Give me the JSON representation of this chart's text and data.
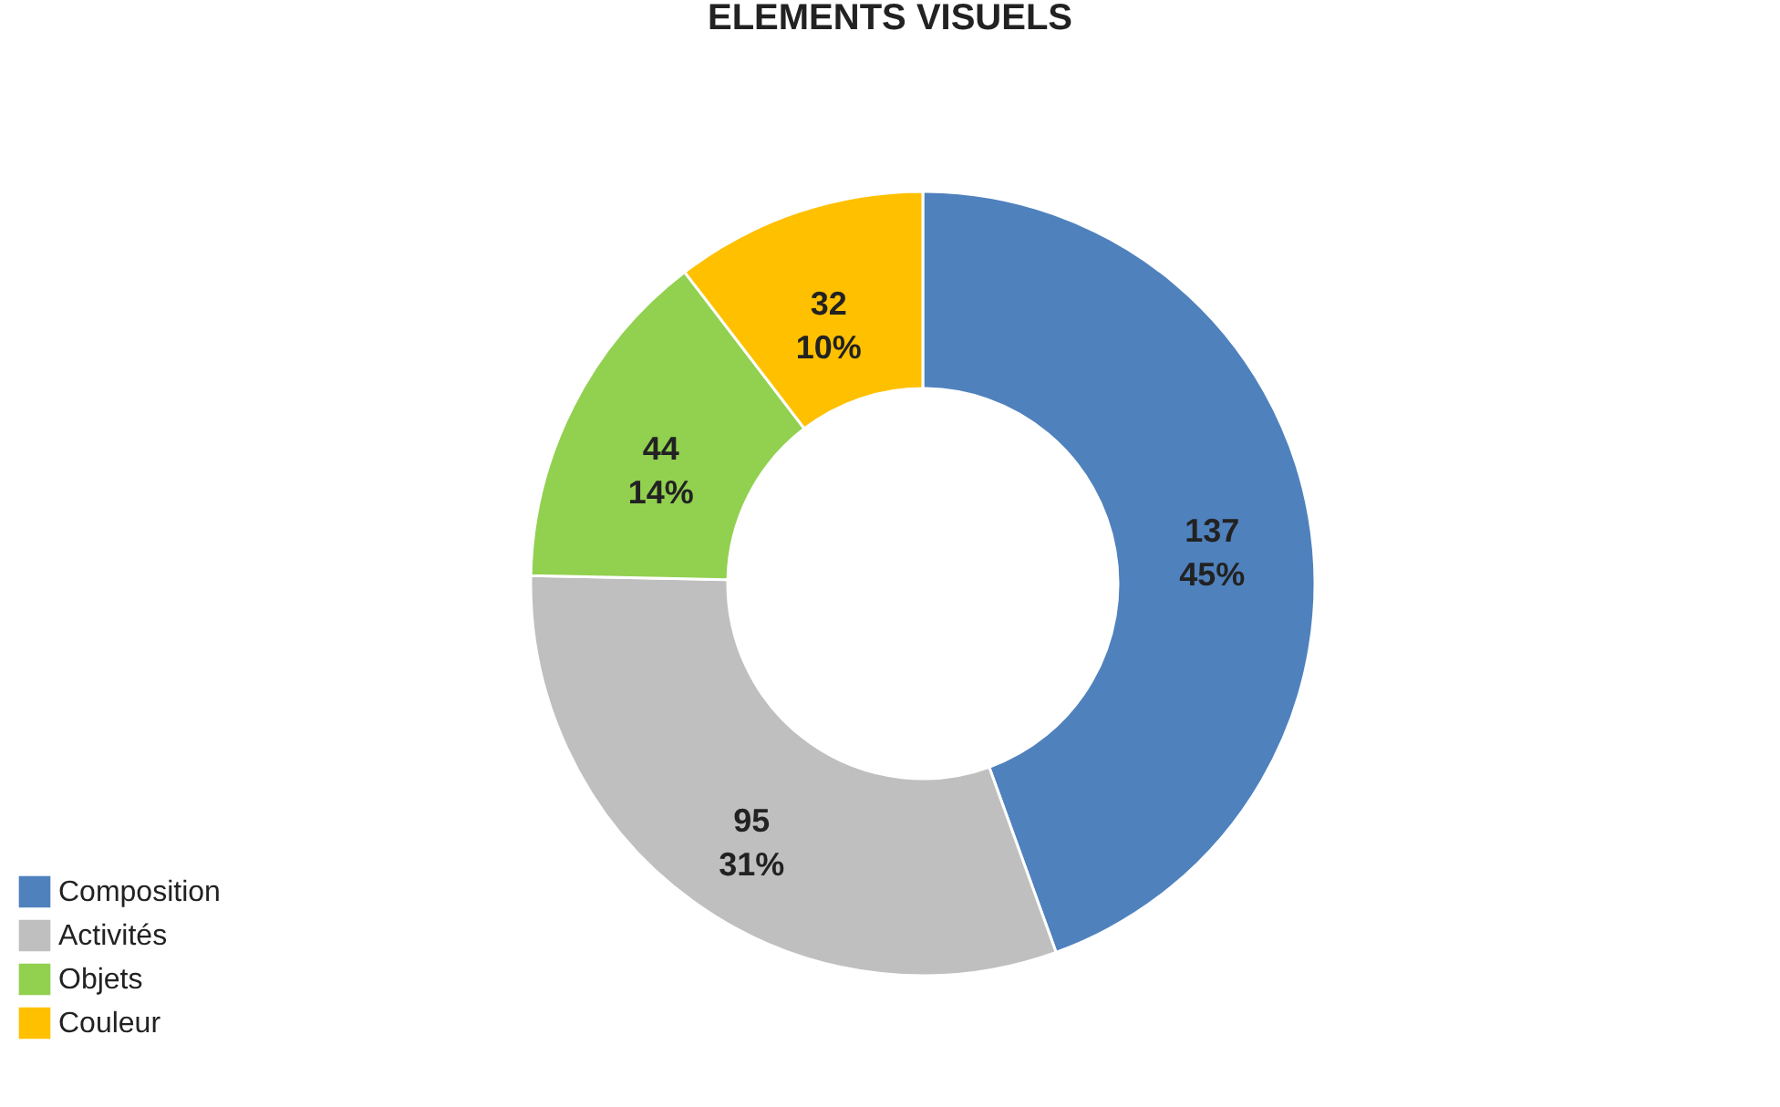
{
  "chart_data": {
    "type": "donut",
    "title": "ELEMENTS VISUELS",
    "categories": [
      "Composition",
      "Activités",
      "Objets",
      "Couleur"
    ],
    "values": [
      137,
      95,
      44,
      32
    ],
    "colors": [
      "#4f81bd",
      "#bfbfbf",
      "#92d050",
      "#ffc000"
    ],
    "value_labels": [
      "137\n45%",
      "95\n31%",
      "44\n14%",
      "32\n10%"
    ],
    "legend": "bottom left"
  }
}
